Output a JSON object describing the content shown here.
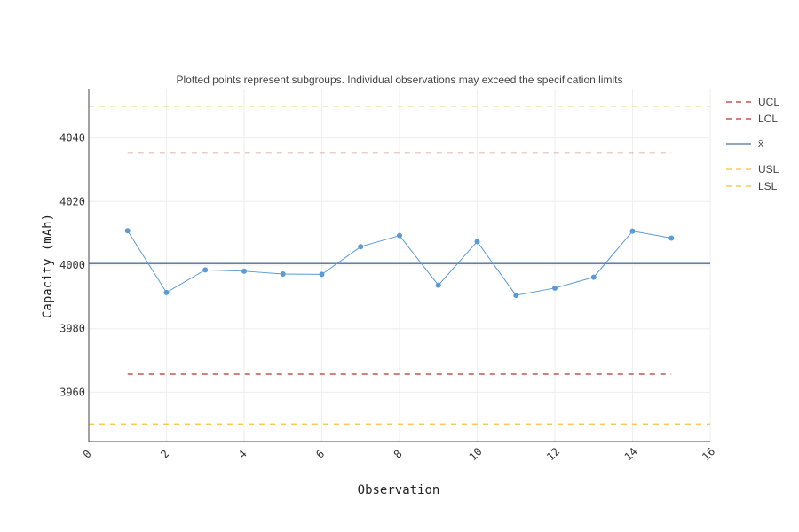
{
  "chart_data": {
    "type": "line",
    "title": "Plotted points represent subgroups. Individual observations may exceed the specification limits",
    "xlabel": "Observation",
    "ylabel": "Capacity (mAh)",
    "xlim": [
      0,
      16
    ],
    "ylim": [
      3944.5,
      4055.5
    ],
    "x_ticks": [
      0,
      2,
      4,
      6,
      8,
      10,
      12,
      14,
      16
    ],
    "y_ticks": [
      3960,
      3980,
      4000,
      4020,
      4040
    ],
    "grid": true,
    "legend_position": "right",
    "series": [
      {
        "x": [
          1,
          2,
          3,
          4,
          5,
          6,
          7,
          8,
          9,
          10,
          11,
          12,
          13,
          14,
          15
        ],
        "values": [
          4010.8,
          3991.4,
          3998.5,
          3998.1,
          3997.2,
          3997.1,
          4005.8,
          4009.3,
          3993.7,
          4007.4,
          3990.5,
          3992.8,
          3996.2,
          4010.7,
          4008.5
        ],
        "color": "#5b9bd5"
      }
    ],
    "reference_lines": [
      {
        "name": "UCL",
        "y": 4035.3,
        "x_range": [
          1,
          15
        ],
        "style": "dashed",
        "color": "#b5372b"
      },
      {
        "name": "LCL",
        "y": 3965.7,
        "x_range": [
          1,
          15
        ],
        "style": "dashed",
        "color": "#b5372b"
      },
      {
        "name": "x̄",
        "y": 4000.5,
        "x_range": [
          0,
          16
        ],
        "style": "solid",
        "color": "#4e6f99"
      },
      {
        "name": "USL",
        "y": 4050,
        "x_range": [
          0,
          16
        ],
        "style": "dashed",
        "color": "#f5c242"
      },
      {
        "name": "LSL",
        "y": 3950,
        "x_range": [
          0,
          16
        ],
        "style": "dashed",
        "color": "#f5c242"
      }
    ]
  }
}
